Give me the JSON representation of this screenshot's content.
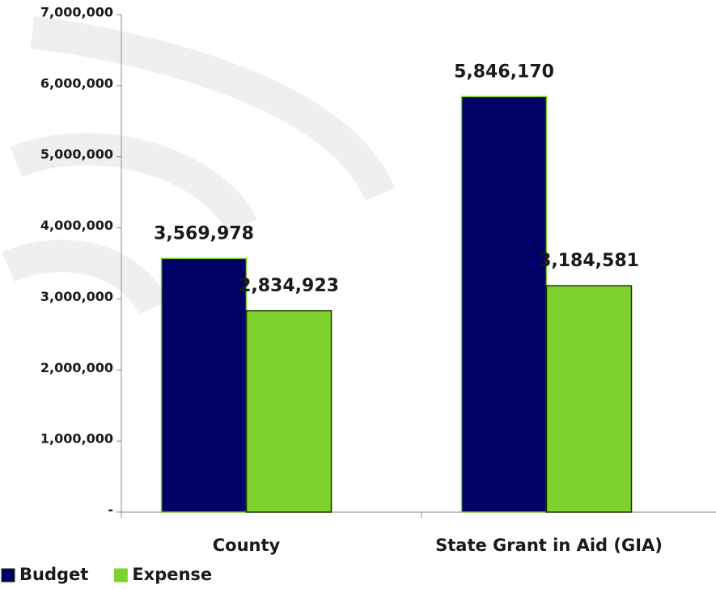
{
  "chart_data": {
    "type": "bar",
    "categories": [
      "County",
      "State Grant in Aid (GIA)"
    ],
    "series": [
      {
        "name": "Budget",
        "color": "#000066",
        "values": [
          3569978,
          5846170
        ],
        "value_labels": [
          "3,569,978",
          "5,846,170"
        ]
      },
      {
        "name": "Expense",
        "color": "#7ed12e",
        "values": [
          2834923,
          3184581
        ],
        "value_labels": [
          "2,834,923",
          "3,184,581"
        ]
      }
    ],
    "ylim": [
      0,
      7000000
    ],
    "yticks": [
      {
        "value": 0,
        "label": "-"
      },
      {
        "value": 1000000,
        "label": "1,000,000"
      },
      {
        "value": 2000000,
        "label": "2,000,000"
      },
      {
        "value": 3000000,
        "label": "3,000,000"
      },
      {
        "value": 4000000,
        "label": "4,000,000"
      },
      {
        "value": 5000000,
        "label": "5,000,000"
      },
      {
        "value": 6000000,
        "label": "6,000,000"
      },
      {
        "value": 7000000,
        "label": "7,000,000"
      }
    ]
  }
}
